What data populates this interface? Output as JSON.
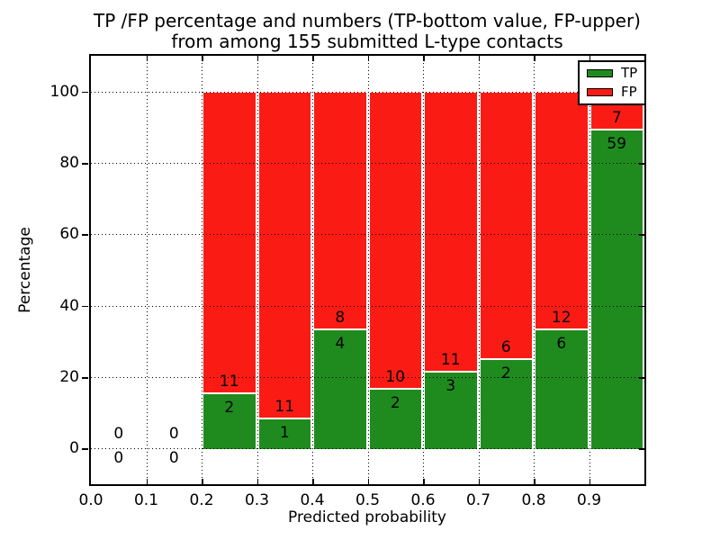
{
  "title": {
    "line1": "TP /FP percentage and numbers (TP-bottom value, FP-upper)",
    "line2": "from among 155 submitted L-type contacts"
  },
  "axes": {
    "x_label": "Predicted probability",
    "y_label": "Percentage",
    "x_tick_labels": [
      "0.0",
      "0.1",
      "0.2",
      "0.3",
      "0.4",
      "0.5",
      "0.6",
      "0.7",
      "0.8",
      "0.9"
    ],
    "y_tick_labels": [
      "0",
      "20",
      "40",
      "60",
      "80",
      "100"
    ]
  },
  "legend": {
    "items": [
      {
        "label": "TP",
        "color": "#1f8b1e"
      },
      {
        "label": "FP",
        "color": "#fb1b15"
      }
    ]
  },
  "colors": {
    "tp": "#1f8b1e",
    "fp": "#fb1b15",
    "grid": "#000000",
    "frame": "#000000",
    "background": "#ffffff"
  },
  "chart_data": {
    "type": "bar",
    "stacked": true,
    "normalized": "each bin scaled to 100%",
    "title": "TP /FP percentage and numbers (TP-bottom value, FP-upper) from among 155 submitted L-type contacts",
    "xlabel": "Predicted probability",
    "ylabel": "Percentage",
    "xlim": [
      0.0,
      1.0
    ],
    "ylim": [
      -10,
      110
    ],
    "grid": true,
    "legend_position": "upper right",
    "total_contacts": 155,
    "bin_width": 0.1,
    "categories": [
      "0.0-0.1",
      "0.1-0.2",
      "0.2-0.3",
      "0.3-0.4",
      "0.4-0.5",
      "0.5-0.6",
      "0.6-0.7",
      "0.7-0.8",
      "0.8-0.9",
      "0.9-1.0"
    ],
    "series": [
      {
        "name": "TP",
        "counts": [
          0,
          0,
          2,
          1,
          4,
          2,
          3,
          2,
          6,
          59
        ],
        "pct": [
          0,
          0,
          15.38,
          8.33,
          33.33,
          16.67,
          21.43,
          25.0,
          33.33,
          89.39
        ]
      },
      {
        "name": "FP",
        "counts": [
          0,
          0,
          11,
          11,
          8,
          10,
          11,
          6,
          12,
          7
        ],
        "pct": [
          0,
          0,
          84.62,
          91.67,
          66.67,
          83.33,
          78.57,
          75.0,
          66.67,
          10.61
        ]
      }
    ],
    "bins": [
      {
        "x0": 0.0,
        "x1": 0.1,
        "tp": 0,
        "fp": 0,
        "tp_pct": 0
      },
      {
        "x0": 0.1,
        "x1": 0.2,
        "tp": 0,
        "fp": 0,
        "tp_pct": 0
      },
      {
        "x0": 0.2,
        "x1": 0.3,
        "tp": 2,
        "fp": 11,
        "tp_pct": 15.38
      },
      {
        "x0": 0.3,
        "x1": 0.4,
        "tp": 1,
        "fp": 11,
        "tp_pct": 8.33
      },
      {
        "x0": 0.4,
        "x1": 0.5,
        "tp": 4,
        "fp": 8,
        "tp_pct": 33.33
      },
      {
        "x0": 0.5,
        "x1": 0.6,
        "tp": 2,
        "fp": 10,
        "tp_pct": 16.67
      },
      {
        "x0": 0.6,
        "x1": 0.7,
        "tp": 3,
        "fp": 11,
        "tp_pct": 21.43
      },
      {
        "x0": 0.7,
        "x1": 0.8,
        "tp": 2,
        "fp": 6,
        "tp_pct": 25.0
      },
      {
        "x0": 0.8,
        "x1": 0.9,
        "tp": 6,
        "fp": 12,
        "tp_pct": 33.33
      },
      {
        "x0": 0.9,
        "x1": 1.0,
        "tp": 59,
        "fp": 7,
        "tp_pct": 89.39
      }
    ],
    "y_gridlines": [
      0,
      20,
      40,
      60,
      80,
      100
    ],
    "x_gridlines": [
      0.1,
      0.2,
      0.3,
      0.4,
      0.5,
      0.6,
      0.7,
      0.8,
      0.9
    ]
  }
}
